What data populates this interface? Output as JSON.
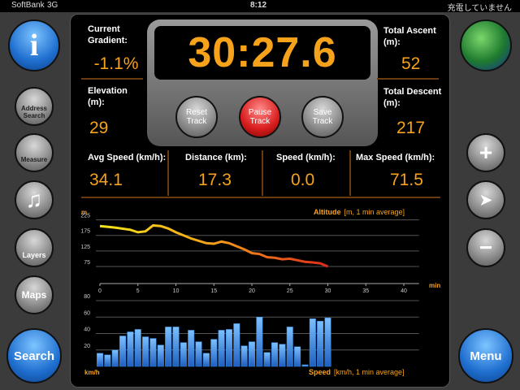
{
  "status_bar": {
    "carrier": "SoftBank",
    "network": "3G",
    "time": "8:12",
    "battery": "充電していません"
  },
  "left_buttons": {
    "info": "i",
    "address_search": "Address Search",
    "measure": "Measure",
    "music": "♫",
    "layers": "Layers",
    "maps": "Maps",
    "search": "Search"
  },
  "right_buttons": {
    "zoom_in": "+",
    "locate": "➤",
    "zoom_out": "−",
    "menu": "Menu"
  },
  "timer": {
    "time": "30:27.6",
    "reset": "Reset Track",
    "pause": "Pause Track",
    "save": "Save Track"
  },
  "stats": {
    "gradient": {
      "label": "Current Gradient:",
      "value": "-1.1%"
    },
    "elevation": {
      "label": "Elevation (m):",
      "value": "29"
    },
    "ascent": {
      "label": "Total Ascent (m):",
      "value": "52"
    },
    "descent": {
      "label": "Total Descent (m):",
      "value": "217"
    },
    "avg_speed": {
      "label": "Avg Speed (km/h):",
      "value": "34.1"
    },
    "distance": {
      "label": "Distance (km):",
      "value": "17.3"
    },
    "speed": {
      "label": "Speed (km/h):",
      "value": "0.0"
    },
    "max_speed": {
      "label": "Max Speed (km/h):",
      "value": "71.5"
    }
  },
  "charts": {
    "altitude": {
      "type": "line",
      "title": "Altitude",
      "subtitle": "[m, 1 min average]",
      "y_unit": "m",
      "x_unit": "min",
      "x": [
        0,
        2,
        4,
        5,
        6,
        7,
        8,
        9,
        10,
        12,
        14,
        15,
        16,
        17,
        18,
        19,
        20,
        21,
        22,
        23,
        24,
        25,
        26,
        27,
        28,
        29,
        30
      ],
      "values": [
        205,
        200,
        193,
        185,
        188,
        207,
        205,
        197,
        185,
        165,
        150,
        148,
        155,
        150,
        140,
        130,
        118,
        115,
        105,
        103,
        98,
        100,
        95,
        90,
        88,
        85,
        75
      ],
      "xlim": [
        0,
        42
      ],
      "ylim": [
        20,
        250
      ],
      "xticks": [
        0,
        5,
        10,
        15,
        20,
        25,
        30,
        35,
        40
      ],
      "yticks": [
        75,
        125,
        175,
        225
      ]
    },
    "speed": {
      "type": "bar",
      "title": "Speed",
      "subtitle": "[km/h, 1 min average]",
      "y_unit": "km/h",
      "color": "#3a8ee8",
      "x": [
        0,
        1,
        2,
        3,
        4,
        5,
        6,
        7,
        8,
        9,
        10,
        11,
        12,
        13,
        14,
        15,
        16,
        17,
        18,
        19,
        20,
        21,
        22,
        23,
        24,
        25,
        26,
        27,
        28,
        29,
        30
      ],
      "values": [
        16,
        14,
        20,
        37,
        42,
        45,
        36,
        34,
        26,
        48,
        48,
        29,
        44,
        30,
        16,
        33,
        44,
        45,
        52,
        25,
        30,
        60,
        17,
        29,
        27,
        48,
        24,
        2,
        58,
        55,
        59
      ],
      "xlim": [
        0,
        42
      ],
      "ylim": [
        0,
        80
      ],
      "yticks": [
        20,
        40,
        60,
        80
      ]
    }
  }
}
